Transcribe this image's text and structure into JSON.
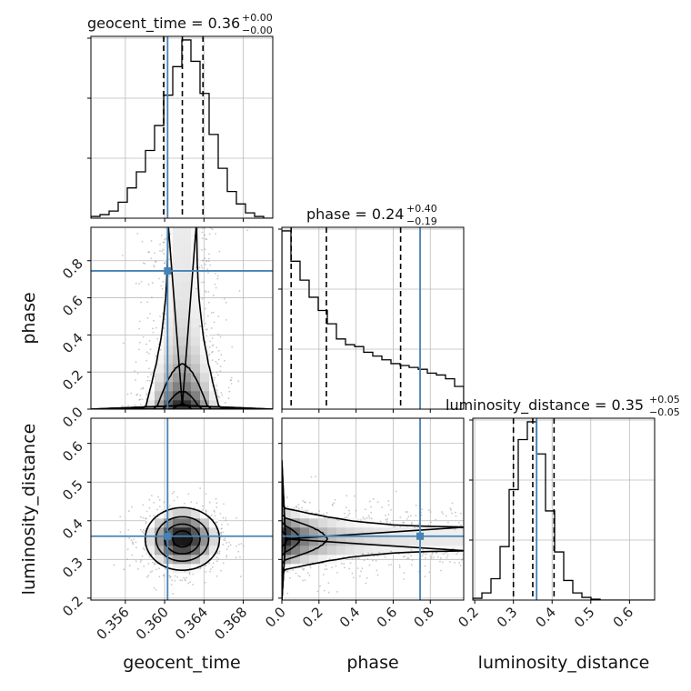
{
  "chart_data": {
    "type": "corner",
    "params": [
      "geocent_time",
      "phase",
      "luminosity_distance"
    ],
    "axis_labels": {
      "geocent_time": "geocent_time",
      "phase": "phase",
      "luminosity_distance": "luminosity_distance"
    },
    "ranges": {
      "geocent_time": [
        0.3525,
        0.371
      ],
      "phase": [
        0.0,
        0.98
      ],
      "luminosity_distance": [
        0.195,
        0.665
      ]
    },
    "ticks": {
      "geocent_time": [
        0.356,
        0.36,
        0.364,
        0.368
      ],
      "phase": [
        0.0,
        0.2,
        0.4,
        0.6,
        0.8
      ],
      "luminosity_distance": [
        0.2,
        0.3,
        0.4,
        0.5,
        0.6
      ]
    },
    "tick_labels": {
      "geocent_time": [
        "0.356",
        "0.360",
        "0.364",
        "0.368"
      ],
      "phase": [
        "0.0",
        "0.2",
        "0.4",
        "0.6",
        "0.8"
      ],
      "luminosity_distance": [
        "0.2",
        "0.3",
        "0.4",
        "0.5",
        "0.6"
      ]
    },
    "titles": {
      "geocent_time": {
        "main": "geocent_time = 0.36",
        "plus": "+0.00",
        "minus": "−0.00"
      },
      "phase": {
        "main": "phase = 0.24",
        "plus": "+0.40",
        "minus": "−0.19"
      },
      "luminosity_distance": {
        "main": "luminosity_distance = 0.35",
        "plus": "+0.05",
        "minus": "−0.05"
      }
    },
    "quantiles": {
      "geocent_time": [
        0.3599,
        0.3618,
        0.3639
      ],
      "phase": [
        0.05,
        0.24,
        0.64
      ],
      "luminosity_distance": [
        0.3,
        0.35,
        0.405
      ]
    },
    "truths": {
      "geocent_time": 0.3603,
      "phase": 0.745,
      "luminosity_distance": 0.36
    },
    "truth_color": "#4682b4",
    "histograms": {
      "geocent_time": {
        "edges": [
          0.3525,
          0.353425,
          0.35435,
          0.355275,
          0.3562,
          0.357125,
          0.35805,
          0.358975,
          0.3599,
          0.360825,
          0.36175,
          0.362675,
          0.3636,
          0.364525,
          0.36545,
          0.366375,
          0.3673,
          0.368225,
          0.36915,
          0.370075,
          0.371
        ],
        "heights": [
          0.01,
          0.02,
          0.04,
          0.09,
          0.17,
          0.26,
          0.38,
          0.52,
          0.69,
          0.85,
          1.0,
          0.88,
          0.7,
          0.47,
          0.28,
          0.15,
          0.08,
          0.03,
          0.01,
          0.0
        ]
      },
      "phase": {
        "edges": [
          0.0,
          0.049,
          0.098,
          0.147,
          0.196,
          0.245,
          0.294,
          0.343,
          0.392,
          0.441,
          0.49,
          0.539,
          0.588,
          0.637,
          0.686,
          0.735,
          0.784,
          0.833,
          0.882,
          0.931,
          0.98
        ],
        "heights": [
          0.94,
          0.78,
          0.68,
          0.59,
          0.52,
          0.45,
          0.37,
          0.34,
          0.33,
          0.3,
          0.28,
          0.26,
          0.24,
          0.23,
          0.22,
          0.21,
          0.19,
          0.18,
          0.16,
          0.12
        ]
      },
      "luminosity_distance": {
        "edges": [
          0.195,
          0.2185,
          0.242,
          0.2655,
          0.289,
          0.3125,
          0.336,
          0.3595,
          0.383,
          0.4065,
          0.43,
          0.4535,
          0.477,
          0.5005,
          0.524,
          0.5475,
          0.571,
          0.5945,
          0.618,
          0.6415,
          0.665
        ],
        "heights": [
          0.01,
          0.04,
          0.12,
          0.3,
          0.62,
          0.9,
          1.0,
          0.82,
          0.5,
          0.27,
          0.11,
          0.04,
          0.015,
          0.005,
          0.0,
          0.0,
          0.0,
          0.0,
          0.0,
          0.0
        ]
      }
    },
    "contour_levels": [
      "0.5",
      "1.0",
      "1.5",
      "2.0"
    ]
  }
}
